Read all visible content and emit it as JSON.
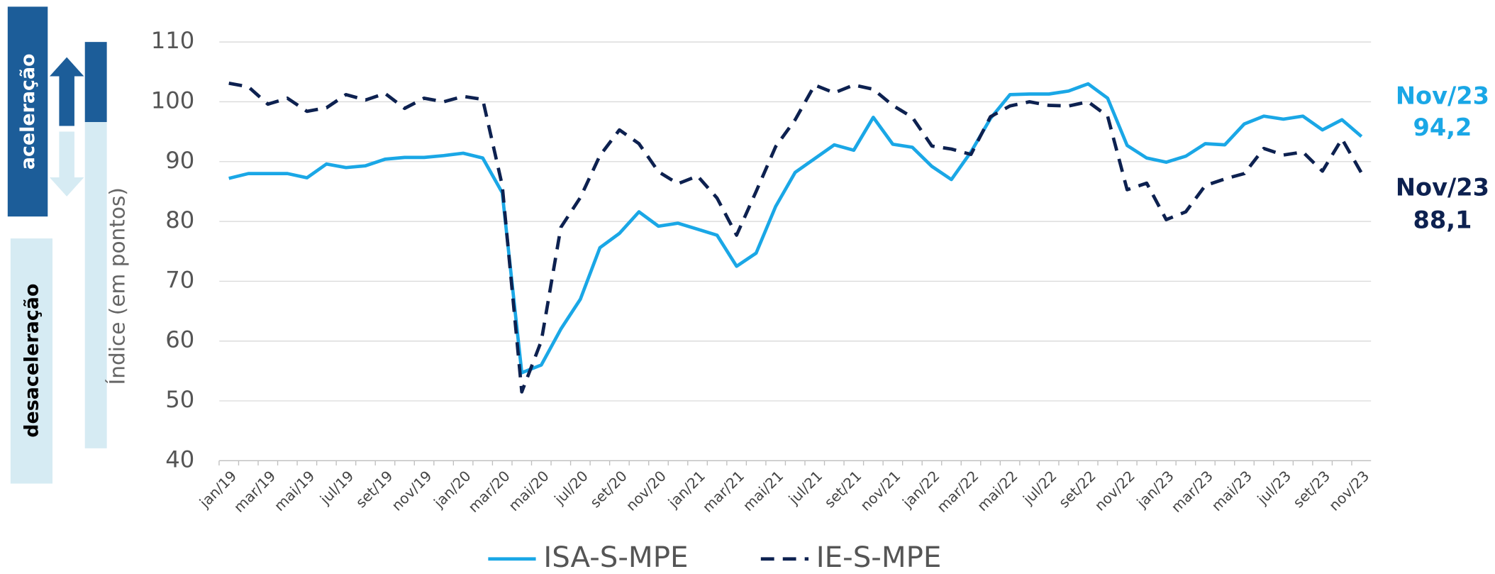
{
  "chart_data": {
    "type": "line",
    "y_label": "Índice (em pontos)",
    "side_labels": [
      "aceleração",
      "desaceleração"
    ],
    "categories": [
      "jan/19",
      null,
      "mar/19",
      null,
      "mai/19",
      null,
      "jul/19",
      null,
      "set/19",
      null,
      "nov/19",
      null,
      "jan/20",
      null,
      "mar/20",
      null,
      "mai/20",
      null,
      "jul/20",
      null,
      "set/20",
      null,
      "nov/20",
      null,
      "jan/21",
      null,
      "mar/21",
      null,
      "mai/21",
      null,
      "jul/21",
      null,
      "set/21",
      null,
      "nov/21",
      null,
      "jan/22",
      null,
      "mar/22",
      null,
      "mai/22",
      null,
      "jul/22",
      null,
      "set/22",
      null,
      "nov/22",
      null,
      "jan/23",
      null,
      "mar/23",
      null,
      "mai/23",
      null,
      "jul/23",
      null,
      "set/23",
      null,
      "nov/23"
    ],
    "series": [
      {
        "name": "ISA-S-MPE",
        "color": "#1aa7e6",
        "dashed": false,
        "values": [
          87.2,
          88,
          88,
          88,
          87.3,
          89.6,
          89,
          89.3,
          90.4,
          90.7,
          90.7,
          91,
          91.4,
          90.6,
          84.8,
          54.7,
          56,
          62,
          67,
          75.6,
          78,
          81.6,
          79.2,
          79.7,
          78.7,
          77.7,
          72.5,
          74.7,
          82.5,
          88.2,
          90.5,
          92.8,
          91.9,
          97.4,
          92.9,
          92.4,
          89.2,
          87,
          91.6,
          97.2,
          101.2,
          101.3,
          101.3,
          101.8,
          103,
          100.6,
          92.7,
          90.6,
          89.9,
          90.9,
          93,
          92.8,
          96.3,
          97.6,
          97.1,
          97.6,
          95.3,
          97,
          94.2
        ]
      },
      {
        "name": "IE-S-MPE",
        "color": "#0d2150",
        "dashed": true,
        "values": [
          103.1,
          102.5,
          99.6,
          100.6,
          98.4,
          99,
          101.2,
          100.3,
          101.4,
          98.9,
          100.6,
          100,
          100.9,
          100.4,
          86,
          51.5,
          60,
          79,
          84,
          91,
          95.3,
          93,
          88.3,
          86.3,
          87.6,
          83.9,
          77.7,
          85,
          92.5,
          97,
          102.8,
          101.5,
          102.8,
          102.1,
          99.4,
          97.4,
          92.6,
          92.1,
          91.2,
          97.5,
          99.3,
          100,
          99.4,
          99.3,
          100,
          97.6,
          85.3,
          86.4,
          80.3,
          81.6,
          86,
          87.1,
          88,
          92.2,
          91.1,
          91.6,
          88.4,
          93.8,
          88.1
        ]
      }
    ],
    "annotations": [
      {
        "period": "Nov/23",
        "value": 94.2,
        "label": "94,2",
        "color": "#1aa7e6"
      },
      {
        "period": "Nov/23",
        "value": 88.1,
        "label": "88,1",
        "color": "#0d2150"
      }
    ],
    "ylim": [
      40,
      110
    ],
    "yticks": [
      40,
      50,
      60,
      70,
      80,
      90,
      100,
      110
    ],
    "grid": true,
    "legend": "bottom"
  }
}
